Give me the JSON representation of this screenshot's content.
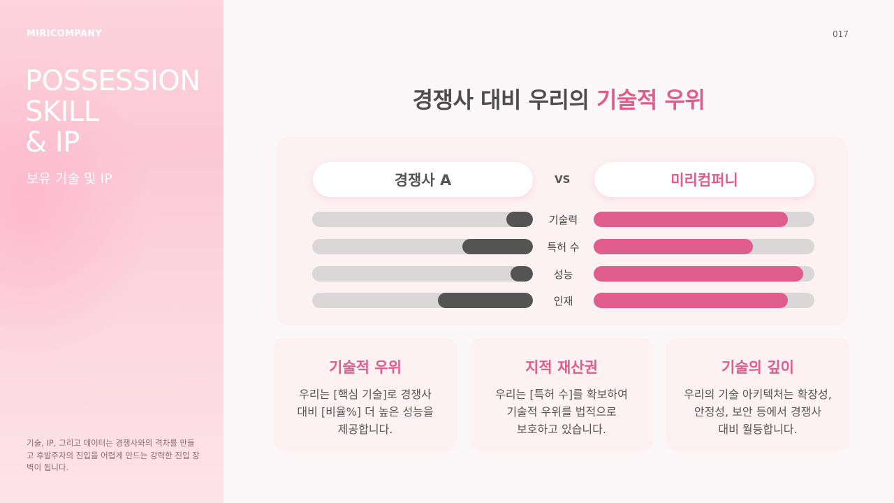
{
  "sidebar": {
    "brand": "MIRICOMPANY",
    "title_lines": [
      "POSSESSION",
      "SKILL",
      "& IP"
    ],
    "subtitle": "보유 기술 및 IP",
    "footnote": "기술, IP, 그리고 데이터는 경쟁사와의 격차를 만들고 후발주자의 진입을 어렵게 만드는 강력한 진입 장벽이 됩니다."
  },
  "page_number": "017",
  "heading": {
    "main": "경쟁사 대비 우리의 ",
    "accent": "기술적 우위"
  },
  "comparison": {
    "left_label": "경쟁사 A",
    "vs_label": "VS",
    "right_label": "미리컴퍼니",
    "colors": {
      "competitor": "#545454",
      "ours": "#e05c8a",
      "track": "#d9d7d8"
    },
    "rows": [
      {
        "label": "기술력",
        "competitor": 0.12,
        "ours": 0.88
      },
      {
        "label": "특허 수",
        "competitor": 0.32,
        "ours": 0.72
      },
      {
        "label": "성능",
        "competitor": 0.1,
        "ours": 0.95
      },
      {
        "label": "인재",
        "competitor": 0.43,
        "ours": 0.88
      }
    ]
  },
  "cards": [
    {
      "title": "기술적 우위",
      "text": "우리는 [핵심 기술]로 경쟁사\n대비 [비율%] 더 높은 성능을\n제공합니다."
    },
    {
      "title": "지적 재산권",
      "text": "우리는 [특허 수]를 확보하여\n기술적 우위를 법적으로\n보호하고 있습니다."
    },
    {
      "title": "기술의 깊이",
      "text": "우리의 기술 아키텍처는 확장성,\n안정성, 보안 등에서 경쟁사\n대비 월등합니다."
    }
  ]
}
